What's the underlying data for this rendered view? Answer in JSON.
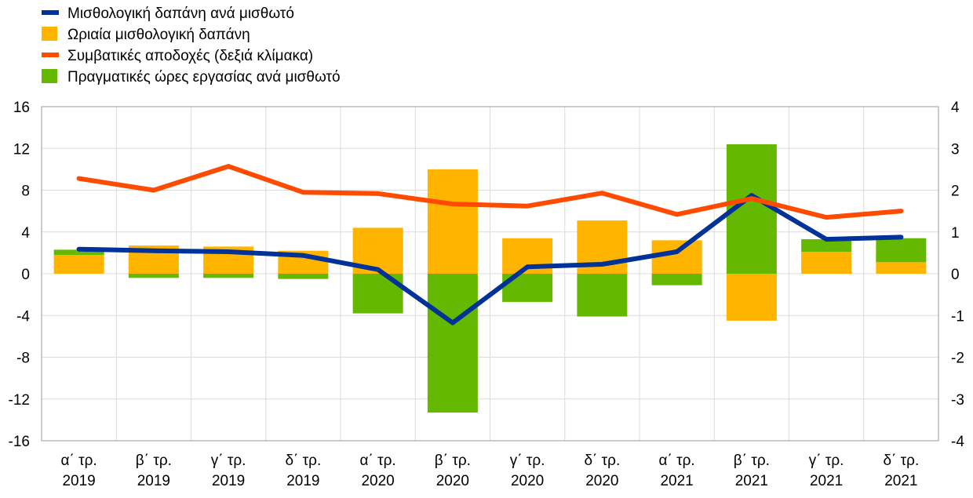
{
  "chart_data": {
    "type": "bar",
    "categories": [
      [
        "α΄ τρ.",
        "2019"
      ],
      [
        "β΄ τρ.",
        "2019"
      ],
      [
        "γ΄ τρ.",
        "2019"
      ],
      [
        "δ΄ τρ.",
        "2019"
      ],
      [
        "α΄ τρ.",
        "2020"
      ],
      [
        "β΄ τρ.",
        "2020"
      ],
      [
        "γ΄ τρ.",
        "2020"
      ],
      [
        "δ΄ τρ.",
        "2020"
      ],
      [
        "α΄ τρ.",
        "2021"
      ],
      [
        "β΄ τρ.",
        "2021"
      ],
      [
        "γ΄ τρ.",
        "2021"
      ],
      [
        "δ΄ τρ.",
        "2021"
      ]
    ],
    "legend": [
      {
        "label": "Μισθολογική δαπάνη ανά μισθωτό",
        "kind": "line",
        "color": "#003299"
      },
      {
        "label": "Ωριαία μισθολογική δαπάνη",
        "kind": "bar",
        "color": "#ffb400"
      },
      {
        "label": "Συμβατικές αποδοχές (δεξιά κλίμακα)",
        "kind": "line",
        "color": "#ff4b00"
      },
      {
        "label": "Πραγματικές ώρες εργασίας ανά μισθωτό",
        "kind": "bar",
        "color": "#65b800"
      }
    ],
    "series": [
      {
        "name": "Ωριαία μισθολογική δαπάνη",
        "type": "bar",
        "axis": "left",
        "color": "#ffb400",
        "values": [
          1.8,
          2.7,
          2.6,
          2.2,
          4.4,
          10.0,
          3.4,
          5.1,
          3.2,
          -4.5,
          2.1,
          1.1
        ]
      },
      {
        "name": "Πραγματικές ώρες εργασίας ανά μισθωτό",
        "type": "bar",
        "axis": "left",
        "color": "#65b800",
        "values": [
          0.5,
          -0.4,
          -0.4,
          -0.5,
          -3.8,
          -13.3,
          -2.7,
          -4.1,
          -1.1,
          12.4,
          1.2,
          2.3
        ]
      },
      {
        "name": "Μισθολογική δαπάνη ανά μισθωτό",
        "type": "line",
        "axis": "left",
        "color": "#003299",
        "values": [
          2.35,
          2.2,
          2.1,
          1.75,
          0.4,
          -4.7,
          0.65,
          0.9,
          2.1,
          7.5,
          3.3,
          3.5
        ]
      },
      {
        "name": "Συμβατικές αποδοχές (δεξιά κλίμακα)",
        "type": "line",
        "axis": "right",
        "color": "#ff4b00",
        "values": [
          2.28,
          2.0,
          2.57,
          1.95,
          1.92,
          1.67,
          1.62,
          1.93,
          1.42,
          1.8,
          1.35,
          1.5
        ]
      }
    ],
    "y_left": {
      "min": -16,
      "max": 16,
      "ticks": [
        16,
        12,
        8,
        4,
        0,
        -4,
        -8,
        -12,
        -16
      ]
    },
    "y_right": {
      "min": -4,
      "max": 4,
      "ticks": [
        4,
        3,
        2,
        1,
        0,
        -1,
        -2,
        -3,
        -4
      ]
    },
    "grid": true,
    "legend_position": "top-left"
  }
}
